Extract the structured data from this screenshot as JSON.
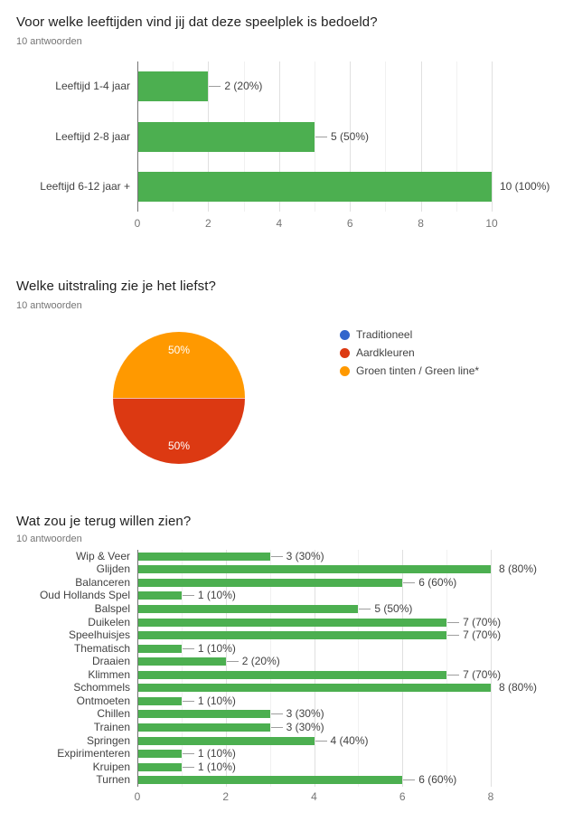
{
  "colors": {
    "bar_green": "#4caf50",
    "pie_red": "#dc3912",
    "pie_orange": "#ff9900",
    "legend_blue": "#3366cc",
    "title_text": "#212121",
    "subtitle_text": "#757575"
  },
  "chart_data": [
    {
      "type": "bar",
      "orientation": "horizontal",
      "title": "Voor welke leeftijden vind jij dat deze speelplek is bedoeld?",
      "subtitle": "10 antwoorden",
      "categories": [
        "Leeftijd 1-4 jaar",
        "Leeftijd 2-8 jaar",
        "Leeftijd 6-12 jaar +"
      ],
      "values": [
        2,
        5,
        10
      ],
      "value_labels": [
        "2 (20%)",
        "5 (50%)",
        "10 (100%)"
      ],
      "xlim": [
        0,
        10
      ],
      "xticks": [
        0,
        2,
        4,
        6,
        8,
        10
      ],
      "grid": true,
      "legend": "none",
      "bar_color": "#4caf50"
    },
    {
      "type": "pie",
      "title": "Welke uitstraling zie je het liefst?",
      "subtitle": "10 antwoorden",
      "legend_position": "right",
      "slices": [
        {
          "label": "Traditioneel",
          "value": 0,
          "pct_label": "",
          "color": "#3366cc"
        },
        {
          "label": "Aardkleuren",
          "value": 50,
          "pct_label": "50%",
          "color": "#dc3912"
        },
        {
          "label": "Groen tinten / Green line*",
          "value": 50,
          "pct_label": "50%",
          "color": "#ff9900"
        }
      ]
    },
    {
      "type": "bar",
      "orientation": "horizontal",
      "title": "Wat zou je terug willen zien?",
      "subtitle": "10 antwoorden",
      "categories": [
        "Wip & Veer",
        "Glijden",
        "Balanceren",
        "Oud Hollands Spel",
        "Balspel",
        "Duikelen",
        "Speelhuisjes",
        "Thematisch",
        "Draaien",
        "Klimmen",
        "Schommels",
        "Ontmoeten",
        "Chillen",
        "Trainen",
        "Springen",
        "Expirimenteren",
        "Kruipen",
        "Turnen"
      ],
      "values": [
        3,
        8,
        6,
        1,
        5,
        7,
        7,
        1,
        2,
        7,
        8,
        1,
        3,
        3,
        4,
        1,
        1,
        6
      ],
      "value_labels": [
        "3 (30%)",
        "8 (80%)",
        "6 (60%)",
        "1 (10%)",
        "5 (50%)",
        "7 (70%)",
        "7 (70%)",
        "1 (10%)",
        "2 (20%)",
        "7 (70%)",
        "8 (80%)",
        "1 (10%)",
        "3 (30%)",
        "3 (30%)",
        "4 (40%)",
        "1 (10%)",
        "1 (10%)",
        "6 (60%)"
      ],
      "xlim": [
        0,
        8
      ],
      "xticks": [
        0,
        2,
        4,
        6,
        8
      ],
      "grid": true,
      "legend": "none",
      "bar_color": "#4caf50"
    }
  ]
}
